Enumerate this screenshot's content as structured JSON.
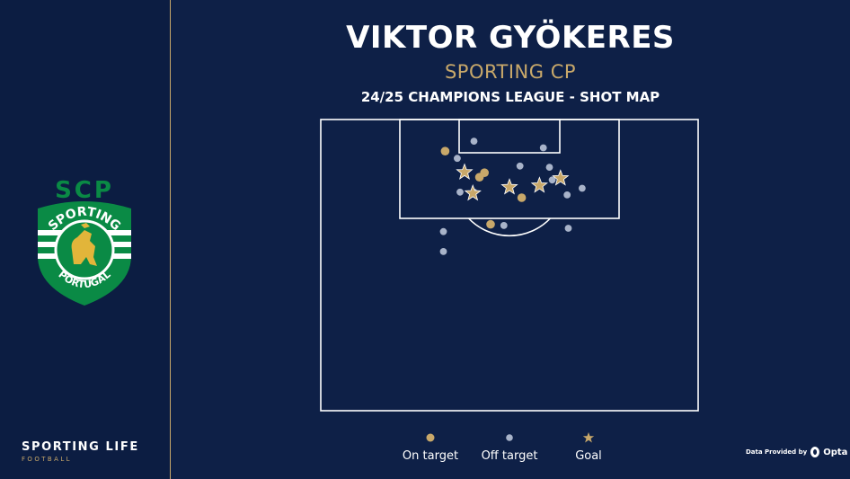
{
  "player": "VIKTOR GYÖKERES",
  "team": "SPORTING CP",
  "subtitle": "24/25 CHAMPIONS LEAGUE - SHOT MAP",
  "brand": {
    "name": "SPORTING LIFE",
    "sub": "FOOTBALL"
  },
  "crest": {
    "top_text": "SCP",
    "arc_text": "SPORTING",
    "bottom_text": "PORTUGAL",
    "green": "#0a8a45",
    "gold": "#e2b53a"
  },
  "credit": {
    "prefix": "Data Provided by",
    "brand": "Opta"
  },
  "legend": [
    {
      "label": "On target",
      "marker": "dot",
      "color": "#c8a86a"
    },
    {
      "label": "Off target",
      "marker": "dot",
      "color": "#a8b3c9"
    },
    {
      "label": "Goal",
      "marker": "star",
      "color": "#c8a86a"
    }
  ],
  "colors": {
    "background": "#0e2047",
    "gold": "#c8a86a",
    "off_target": "#a8b3c9",
    "lines": "#ffffff"
  },
  "chart_data": {
    "type": "scatter",
    "title": "24/25 CHAMPIONS LEAGUE - SHOT MAP",
    "coordinate_note": "pitch x = width position (0-68 m), y = distance from goal line (0-52.5 m), attacking half",
    "xlim": [
      0,
      68
    ],
    "ylim": [
      0,
      52.5
    ],
    "series": [
      {
        "name": "On target",
        "marker": "dot",
        "color": "#c8a86a",
        "points": [
          [
            22.4,
            5.7
          ],
          [
            28.6,
            10.4
          ],
          [
            29.5,
            9.6
          ],
          [
            30.6,
            18.9
          ],
          [
            36.2,
            14.1
          ]
        ]
      },
      {
        "name": "Off target",
        "marker": "dot",
        "color": "#a8b3c9",
        "points": [
          [
            27.6,
            3.9
          ],
          [
            40.1,
            5.1
          ],
          [
            24.6,
            7.0
          ],
          [
            35.9,
            8.4
          ],
          [
            41.2,
            8.6
          ],
          [
            25.1,
            13.1
          ],
          [
            27.6,
            13.1
          ],
          [
            41.7,
            10.9
          ],
          [
            44.4,
            13.6
          ],
          [
            47.1,
            12.4
          ],
          [
            33.0,
            19.1
          ],
          [
            22.1,
            23.8
          ],
          [
            22.1,
            20.2
          ],
          [
            44.6,
            19.6
          ]
        ]
      },
      {
        "name": "Goal",
        "marker": "star",
        "color": "#c8a86a",
        "points": [
          [
            25.9,
            9.5
          ],
          [
            34.0,
            12.2
          ],
          [
            39.4,
            11.9
          ],
          [
            43.2,
            10.6
          ],
          [
            27.4,
            13.3
          ]
        ]
      }
    ]
  }
}
